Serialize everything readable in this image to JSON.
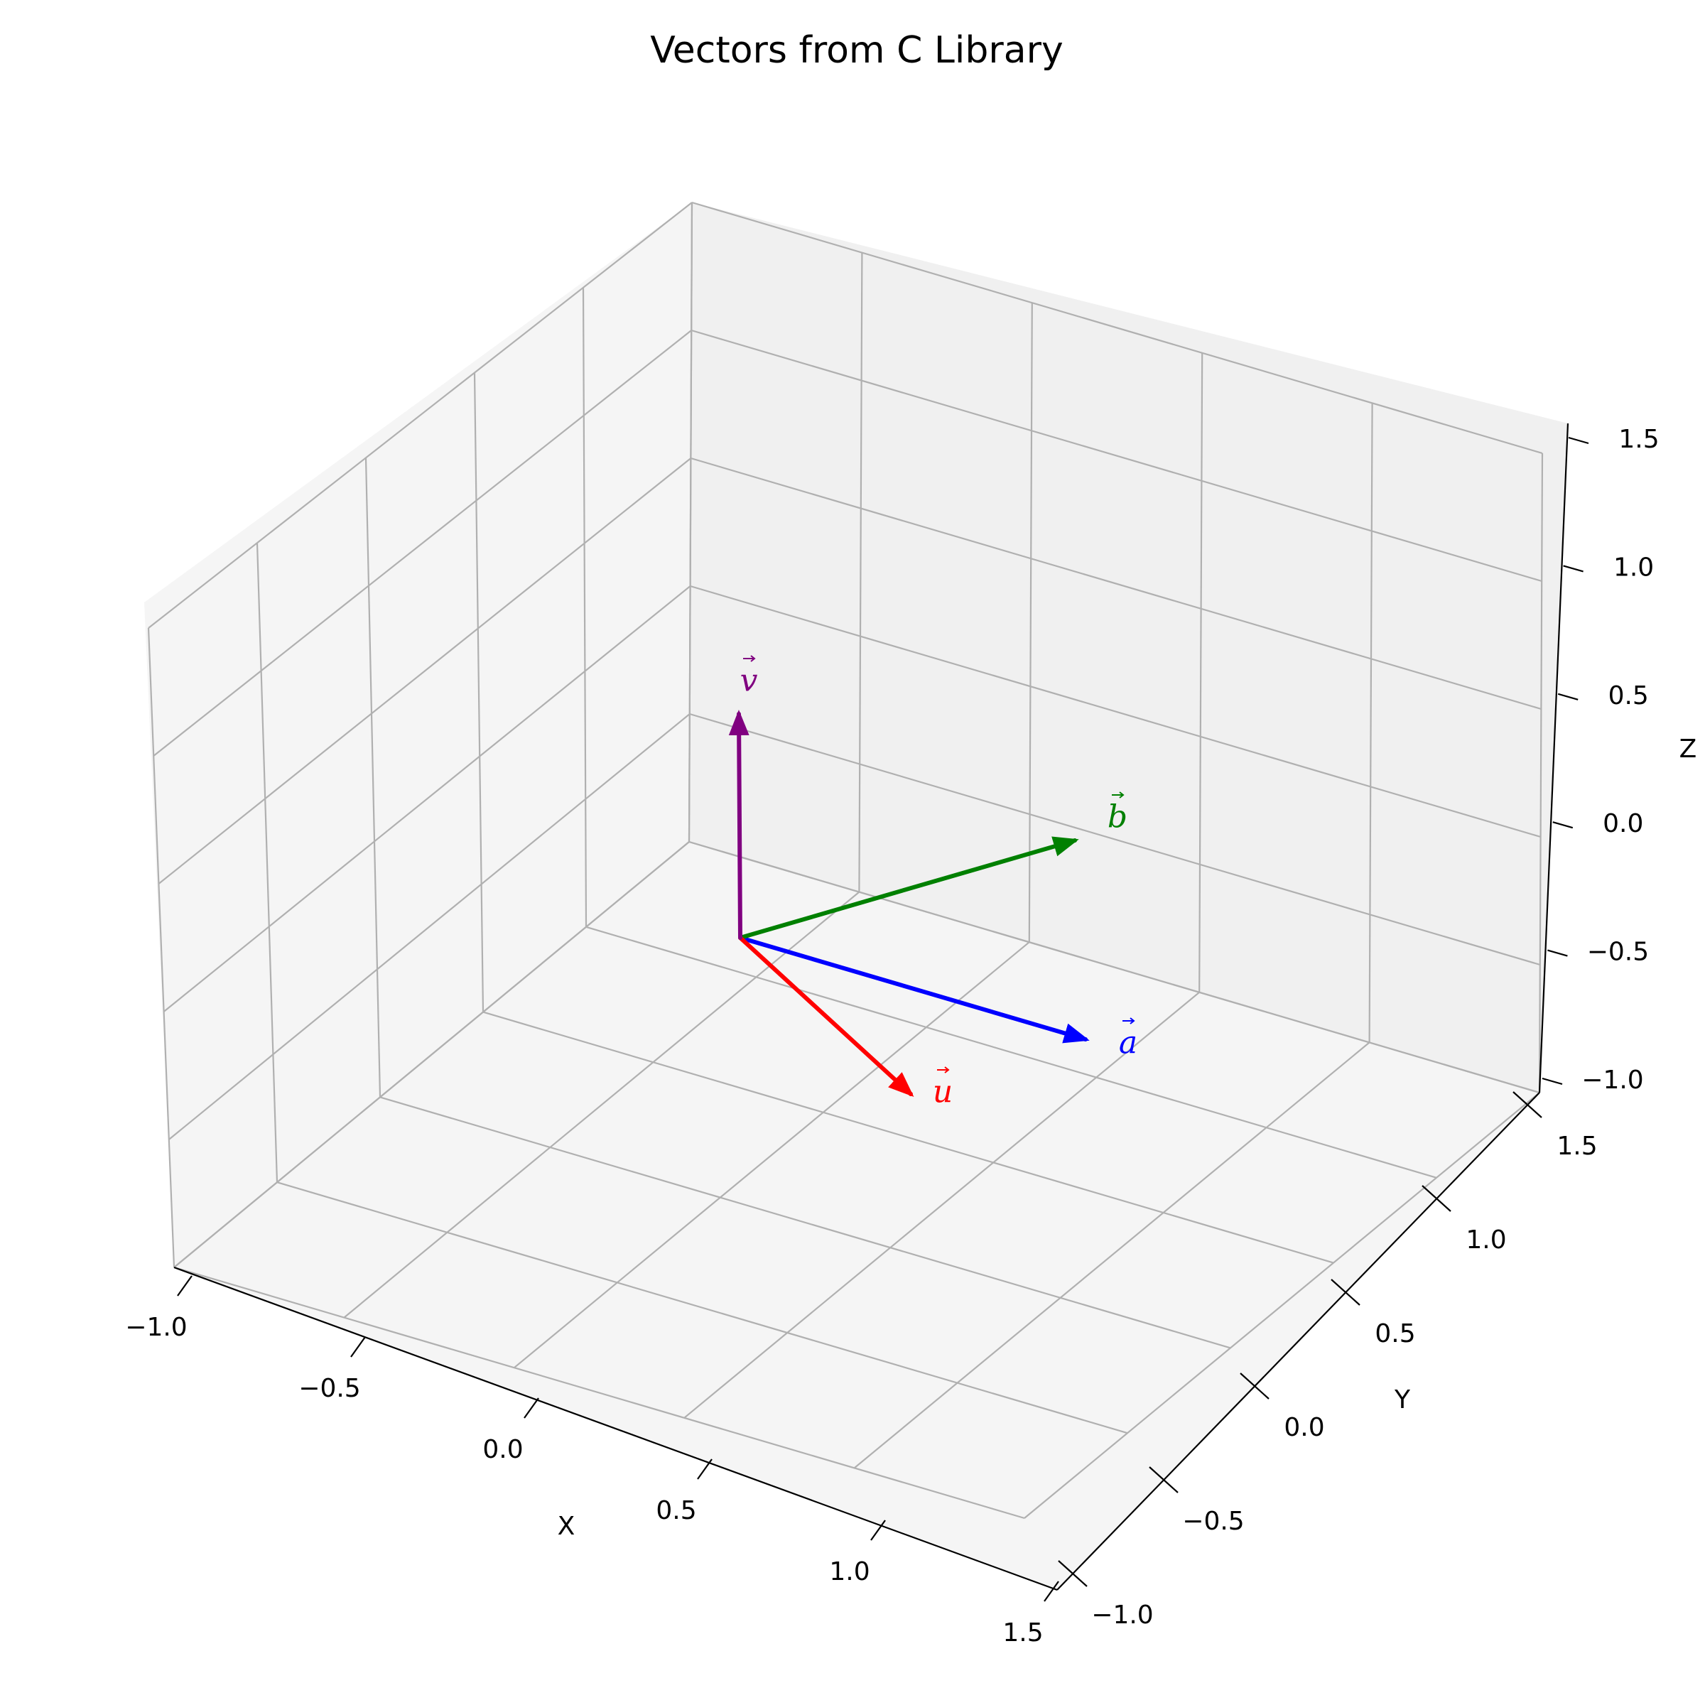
{
  "chart_data": {
    "type": "quiver3d",
    "title": "Vectors from C Library",
    "xlabel": "X",
    "ylabel": "Y",
    "zlabel": "Z",
    "xlim": [
      -1.0,
      1.5
    ],
    "ylim": [
      -1.0,
      1.5
    ],
    "zlim": [
      -1.0,
      1.5
    ],
    "grid": true,
    "x_ticks": [
      "−1.0",
      "−0.5",
      "0.0",
      "0.5",
      "1.0",
      "1.5"
    ],
    "y_ticks": [
      "−1.0",
      "−0.5",
      "0.0",
      "0.5",
      "1.0",
      "1.5"
    ],
    "z_ticks": [
      "−1.0",
      "−0.5",
      "0.0",
      "0.5",
      "1.0",
      "1.5"
    ],
    "origin": [
      0,
      0,
      0
    ],
    "vectors": [
      {
        "label": "a",
        "components": [
          1,
          1,
          0
        ],
        "color": "#0000ff"
      },
      {
        "label": "b",
        "components": [
          0,
          1,
          1
        ],
        "color": "#008000"
      },
      {
        "label": "u",
        "components": [
          1,
          0,
          0
        ],
        "color": "#ff0000"
      },
      {
        "label": "v",
        "components": [
          0,
          0,
          1
        ],
        "color": "#800080"
      }
    ]
  }
}
